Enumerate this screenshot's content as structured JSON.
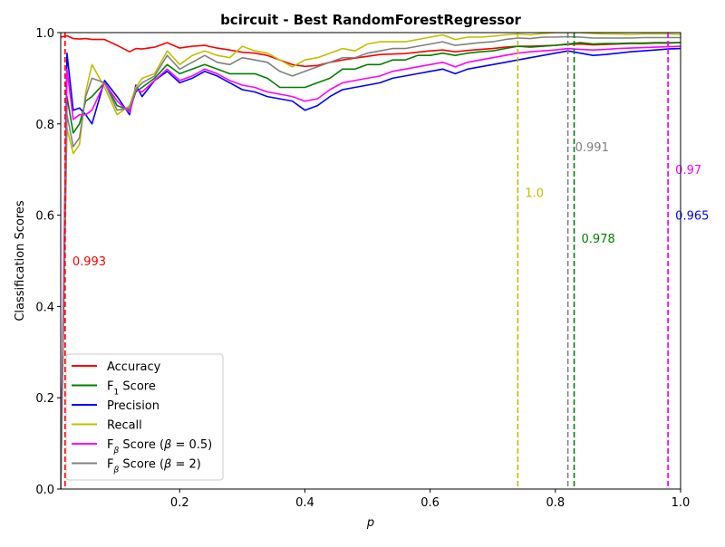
{
  "chart_data": {
    "type": "line",
    "title": "bcircuit - Best RandomForestRegressor",
    "xlabel": "p",
    "ylabel": "Classification Scores",
    "xlim": [
      0.01,
      1.0
    ],
    "ylim": [
      0.0,
      1.0
    ],
    "x_ticks": [
      0.2,
      0.4,
      0.6,
      0.8,
      1.0
    ],
    "x_tick_labels": [
      "0.2",
      "0.4",
      "0.6",
      "0.8",
      "1.0"
    ],
    "y_ticks": [
      0.0,
      0.2,
      0.4,
      0.6,
      0.8,
      1.0
    ],
    "y_tick_labels": [
      "0.0",
      "0.2",
      "0.4",
      "0.6",
      "0.8",
      "1.0"
    ],
    "grid": false,
    "legend_position": "lower-left",
    "x": [
      0.01,
      0.02,
      0.03,
      0.04,
      0.05,
      0.06,
      0.08,
      0.1,
      0.12,
      0.13,
      0.14,
      0.16,
      0.18,
      0.2,
      0.22,
      0.24,
      0.26,
      0.28,
      0.3,
      0.32,
      0.34,
      0.36,
      0.38,
      0.4,
      0.42,
      0.44,
      0.46,
      0.48,
      0.5,
      0.52,
      0.54,
      0.56,
      0.58,
      0.6,
      0.62,
      0.64,
      0.66,
      0.68,
      0.7,
      0.72,
      0.74,
      0.76,
      0.78,
      0.8,
      0.82,
      0.84,
      0.86,
      0.88,
      0.9,
      0.92,
      0.94,
      0.96,
      0.98,
      1.0
    ],
    "series": [
      {
        "name": "Accuracy",
        "color": "#ff0000",
        "values": [
          0.99,
          0.993,
          0.987,
          0.986,
          0.987,
          0.985,
          0.985,
          0.972,
          0.958,
          0.965,
          0.964,
          0.968,
          0.978,
          0.966,
          0.97,
          0.972,
          0.966,
          0.962,
          0.957,
          0.955,
          0.95,
          0.94,
          0.93,
          0.926,
          0.928,
          0.935,
          0.94,
          0.944,
          0.948,
          0.952,
          0.953,
          0.954,
          0.957,
          0.96,
          0.962,
          0.958,
          0.961,
          0.963,
          0.965,
          0.968,
          0.97,
          0.97,
          0.971,
          0.972,
          0.974,
          0.975,
          0.973,
          0.974,
          0.975,
          0.976,
          0.976,
          0.977,
          0.977,
          0.978
        ]
      },
      {
        "name": "F1 Score",
        "label_html": "F<tspan font-size='70%' baseline-shift='sub'>1</tspan> Score",
        "color": "#008000",
        "values": [
          0.0,
          0.86,
          0.78,
          0.8,
          0.85,
          0.86,
          0.89,
          0.84,
          0.83,
          0.87,
          0.88,
          0.9,
          0.93,
          0.91,
          0.92,
          0.93,
          0.92,
          0.91,
          0.91,
          0.91,
          0.9,
          0.88,
          0.88,
          0.88,
          0.89,
          0.9,
          0.92,
          0.92,
          0.93,
          0.93,
          0.94,
          0.94,
          0.95,
          0.95,
          0.955,
          0.95,
          0.955,
          0.958,
          0.96,
          0.965,
          0.97,
          0.968,
          0.97,
          0.972,
          0.975,
          0.978,
          0.975,
          0.976,
          0.976,
          0.977,
          0.977,
          0.978,
          0.978,
          0.978
        ]
      },
      {
        "name": "Precision",
        "color": "#0000ff",
        "values": [
          0.0,
          0.955,
          0.83,
          0.835,
          0.82,
          0.8,
          0.895,
          0.86,
          0.82,
          0.885,
          0.86,
          0.895,
          0.915,
          0.89,
          0.9,
          0.915,
          0.905,
          0.89,
          0.875,
          0.87,
          0.86,
          0.855,
          0.85,
          0.83,
          0.84,
          0.86,
          0.875,
          0.88,
          0.885,
          0.89,
          0.9,
          0.905,
          0.91,
          0.915,
          0.92,
          0.91,
          0.92,
          0.925,
          0.93,
          0.935,
          0.94,
          0.945,
          0.95,
          0.955,
          0.96,
          0.955,
          0.95,
          0.952,
          0.955,
          0.958,
          0.96,
          0.962,
          0.964,
          0.965
        ]
      },
      {
        "name": "Recall",
        "color": "#bfbf00",
        "values": [
          0.0,
          0.79,
          0.735,
          0.755,
          0.87,
          0.93,
          0.88,
          0.82,
          0.84,
          0.88,
          0.9,
          0.91,
          0.96,
          0.93,
          0.95,
          0.96,
          0.95,
          0.945,
          0.97,
          0.96,
          0.955,
          0.94,
          0.925,
          0.94,
          0.945,
          0.955,
          0.965,
          0.96,
          0.975,
          0.98,
          0.98,
          0.98,
          0.985,
          0.99,
          0.995,
          0.985,
          0.99,
          0.99,
          0.992,
          0.995,
          0.997,
          0.995,
          0.998,
          1.0,
          1.0,
          1.0,
          0.998,
          0.997,
          0.997,
          0.996,
          0.997,
          0.997,
          0.997,
          0.996
        ]
      },
      {
        "name": "Fβ Score (β = 0.5)",
        "label_html": "F<tspan font-size='70%' baseline-shift='sub' font-style='italic'>β</tspan> Score (<tspan font-style='italic'>β</tspan> = 0.5)",
        "color": "#ff00ff",
        "values": [
          0.0,
          0.92,
          0.81,
          0.82,
          0.82,
          0.83,
          0.89,
          0.85,
          0.825,
          0.875,
          0.87,
          0.895,
          0.92,
          0.895,
          0.905,
          0.92,
          0.91,
          0.895,
          0.885,
          0.88,
          0.87,
          0.865,
          0.86,
          0.85,
          0.855,
          0.875,
          0.89,
          0.895,
          0.9,
          0.905,
          0.915,
          0.92,
          0.925,
          0.93,
          0.935,
          0.925,
          0.935,
          0.94,
          0.945,
          0.95,
          0.955,
          0.958,
          0.96,
          0.962,
          0.965,
          0.963,
          0.962,
          0.963,
          0.965,
          0.966,
          0.967,
          0.968,
          0.969,
          0.97
        ]
      },
      {
        "name": "Fβ Score (β = 2)",
        "label_html": "F<tspan font-size='70%' baseline-shift='sub' font-style='italic'>β</tspan> Score (<tspan font-style='italic'>β</tspan> = 2)",
        "color": "#808080",
        "values": [
          0.0,
          0.82,
          0.75,
          0.77,
          0.86,
          0.9,
          0.89,
          0.83,
          0.835,
          0.875,
          0.89,
          0.905,
          0.95,
          0.92,
          0.935,
          0.95,
          0.935,
          0.93,
          0.945,
          0.94,
          0.935,
          0.915,
          0.905,
          0.915,
          0.925,
          0.935,
          0.945,
          0.945,
          0.955,
          0.96,
          0.965,
          0.965,
          0.97,
          0.975,
          0.98,
          0.972,
          0.975,
          0.978,
          0.98,
          0.985,
          0.988,
          0.987,
          0.99,
          0.99,
          0.991,
          0.99,
          0.988,
          0.988,
          0.988,
          0.988,
          0.989,
          0.989,
          0.989,
          0.989
        ]
      }
    ],
    "vlines": [
      {
        "x": 0.017,
        "color": "#ff0000",
        "label": "0.993",
        "label_y": 0.5
      },
      {
        "x": 0.74,
        "color": "#bfbf00",
        "label": "1.0",
        "label_y": 0.65
      },
      {
        "x": 0.82,
        "color": "#808080",
        "label": "0.991",
        "label_y": 0.75
      },
      {
        "x": 0.83,
        "color": "#008000",
        "label": "0.978",
        "label_y": 0.55
      },
      {
        "x": 0.98,
        "color": "#0000ff",
        "label": "0.965",
        "label_y": 0.6
      },
      {
        "x": 0.98,
        "color": "#ff00ff",
        "label": "0.97",
        "label_y": 0.7
      }
    ]
  }
}
